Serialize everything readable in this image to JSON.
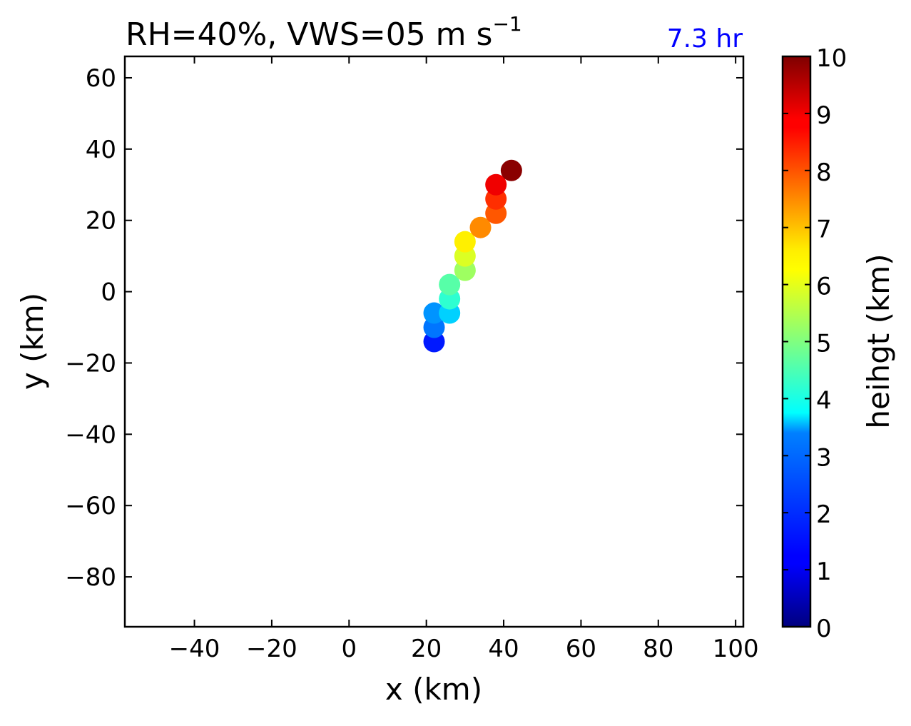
{
  "chart_data": {
    "type": "scatter",
    "title_main": "RH=40%, VWS=05 m s",
    "title_sup": "−1",
    "annotation": "7.3 hr",
    "annotation_color": "#0000ff",
    "xlabel": "x (km)",
    "ylabel": "y (km)",
    "xlim": [
      -58,
      102
    ],
    "ylim": [
      -94,
      66
    ],
    "xticks": [
      -40,
      -20,
      0,
      20,
      40,
      60,
      80,
      100
    ],
    "xtick_labels": [
      "−40",
      "−20",
      "0",
      "20",
      "40",
      "60",
      "80",
      "100"
    ],
    "yticks": [
      60,
      40,
      20,
      0,
      -20,
      -40,
      -60,
      -80
    ],
    "ytick_labels": [
      "60",
      "40",
      "20",
      "0",
      "−20",
      "−40",
      "−60",
      "−80"
    ],
    "grid": false,
    "colormap": "jet",
    "colorbar": {
      "label": "heihgt (km)",
      "range": [
        0,
        10
      ],
      "ticks": [
        "0",
        "1",
        "2",
        "3",
        "4",
        "5",
        "6",
        "7",
        "8",
        "9",
        "10"
      ]
    },
    "points": [
      {
        "x": 22,
        "y": -14,
        "height": 1.5
      },
      {
        "x": 22,
        "y": -10,
        "height": 2.4
      },
      {
        "x": 22,
        "y": -6,
        "height": 2.7
      },
      {
        "x": 26,
        "y": -6,
        "height": 3.3
      },
      {
        "x": 26,
        "y": -2,
        "height": 4.2
      },
      {
        "x": 26,
        "y": 2,
        "height": 4.6
      },
      {
        "x": 30,
        "y": 6,
        "height": 5.3
      },
      {
        "x": 30,
        "y": 10,
        "height": 5.9
      },
      {
        "x": 30,
        "y": 14,
        "height": 6.4
      },
      {
        "x": 34,
        "y": 18,
        "height": 7.4
      },
      {
        "x": 38,
        "y": 22,
        "height": 7.9
      },
      {
        "x": 38,
        "y": 26,
        "height": 8.3
      },
      {
        "x": 38,
        "y": 30,
        "height": 8.9
      },
      {
        "x": 42,
        "y": 34,
        "height": 9.9
      }
    ]
  }
}
